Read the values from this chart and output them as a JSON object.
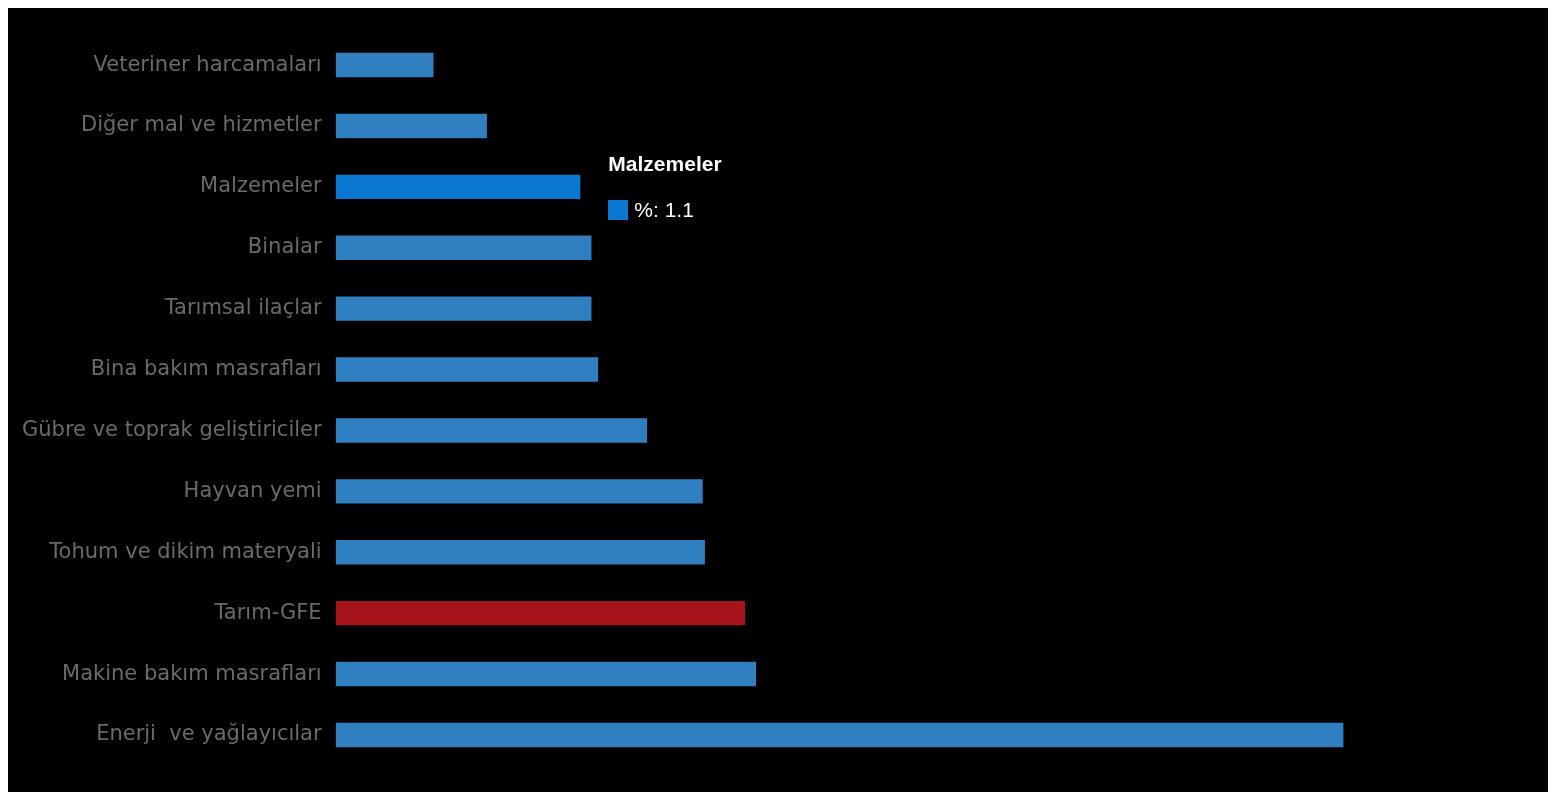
{
  "chart_data": {
    "type": "bar",
    "orientation": "horizontal",
    "categories": [
      "Veteriner harcamaları",
      "Diğer mal ve hizmetler",
      "Malzemeler",
      "Binalar",
      "Tarımsal ilaçlar",
      "Bina bakım masrafları",
      "Gübre ve toprak geliştiriciler",
      "Hayvan yemi",
      "Tohum ve dikim materyali",
      "Tarım-GFE",
      "Makine bakım masrafları",
      "Enerji  ve yağlayıcılar"
    ],
    "values": [
      0.44,
      0.68,
      1.1,
      1.15,
      1.15,
      1.18,
      1.4,
      1.65,
      1.66,
      1.84,
      1.89,
      4.53
    ],
    "colors": [
      "#2f7fc1",
      "#2f7fc1",
      "#0a78d0",
      "#2f7fc1",
      "#2f7fc1",
      "#2f7fc1",
      "#2f7fc1",
      "#2f7fc1",
      "#2f7fc1",
      "#a8141c",
      "#2f7fc1",
      "#2f7fc1"
    ],
    "value_labels": [
      null,
      null,
      "%: 1.1",
      null,
      null,
      null,
      null,
      null,
      null,
      null,
      null,
      null
    ],
    "legend": false
  }
}
